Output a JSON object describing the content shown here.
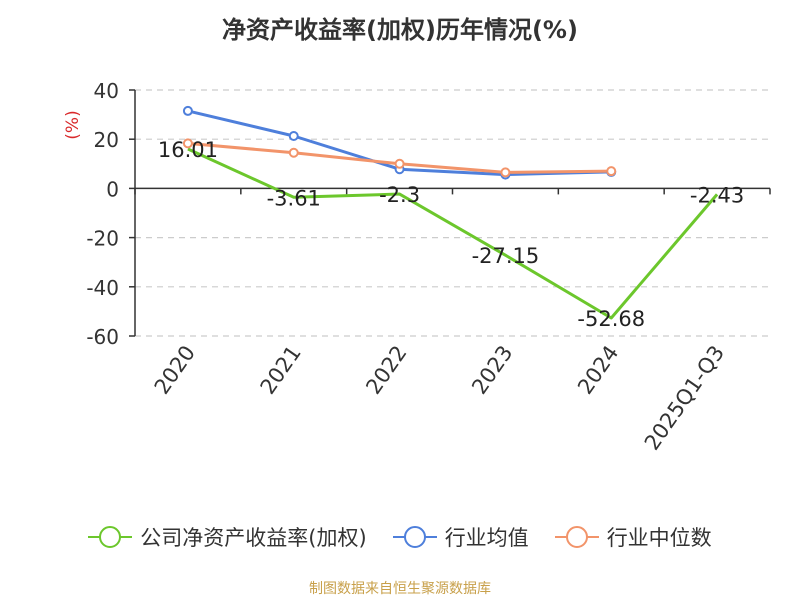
{
  "title": "净资产收益率(加权)历年情况(%)",
  "source": "制图数据来自恒生聚源数据库",
  "colors": {
    "company": "#6cc72c",
    "industry_avg": "#4e7fdb",
    "industry_median": "#f2946a",
    "unit_label": "#d9292b"
  },
  "chart_data": {
    "type": "line",
    "title": "净资产收益率(加权)历年情况(%)",
    "ylabel": "(%)",
    "xlabel": "",
    "categories": [
      "2020",
      "2021",
      "2022",
      "2023",
      "2024",
      "2025Q1-Q3"
    ],
    "ylim": [
      -60,
      40
    ],
    "yticks": [
      40,
      20,
      0,
      -20,
      -40,
      -60
    ],
    "grid": true,
    "legend_position": "bottom",
    "series": [
      {
        "name": "公司净资产收益率(加权)",
        "color": "#6cc72c",
        "values": [
          16.01,
          -3.61,
          -2.3,
          -27.15,
          -52.68,
          -2.43
        ],
        "labels": [
          "16.01",
          "-3.61",
          "-2.3",
          "-27.15",
          "-52.68",
          "-2.43"
        ],
        "markers": [
          false,
          false,
          false,
          false,
          false,
          false
        ]
      },
      {
        "name": "行业均值",
        "color": "#4e7fdb",
        "values": [
          31.5,
          21.3,
          7.8,
          5.6,
          6.7,
          null
        ]
      },
      {
        "name": "行业中位数",
        "color": "#f2946a",
        "values": [
          18.3,
          14.5,
          10.0,
          6.5,
          7.0,
          null
        ]
      }
    ]
  }
}
